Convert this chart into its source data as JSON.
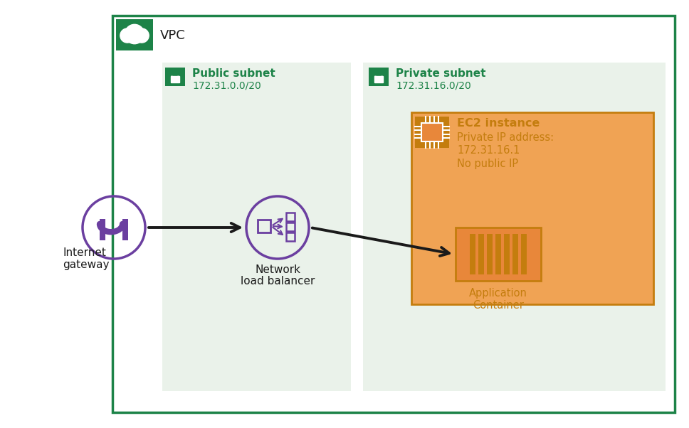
{
  "bg_color": "#ffffff",
  "vpc_border_color": "#1d8348",
  "vpc_bg_color": "#ffffff",
  "vpc_label": "VPC",
  "vpc_icon_bg": "#1d8348",
  "public_subnet_bg": "#eaf2ea",
  "public_subnet_label": "Public subnet",
  "public_subnet_cidr": "172.31.0.0/20",
  "public_subnet_icon_bg": "#1d8348",
  "private_subnet_bg": "#eaf2ea",
  "private_subnet_label": "Private subnet",
  "private_subnet_cidr": "172.31.16.0/20",
  "private_subnet_icon_bg": "#1d8348",
  "ec2_bg": "#f0a354",
  "ec2_border": "#c47d0e",
  "ec2_label": "EC2 instance",
  "ec2_ip_label": "Private IP address:",
  "ec2_ip": "172.31.16.1",
  "ec2_no_public": "No public IP",
  "ec2_icon_bg": "#c47d0e",
  "ec2_text_color": "#c47d0e",
  "container_label1": "Application",
  "container_label2": "Container",
  "container_bg": "#e8873a",
  "container_border": "#c47d0e",
  "igw_label1": "Internet",
  "igw_label2": "gateway",
  "igw_circle_color": "#6b3fa0",
  "nlb_label1": "Network",
  "nlb_label2": "load balancer",
  "nlb_circle_color": "#6b3fa0",
  "arrow_color": "#1a1a1a",
  "text_color": "#1a1a1a",
  "green_label_color": "#1d8348",
  "green_dark": "#1d8348"
}
